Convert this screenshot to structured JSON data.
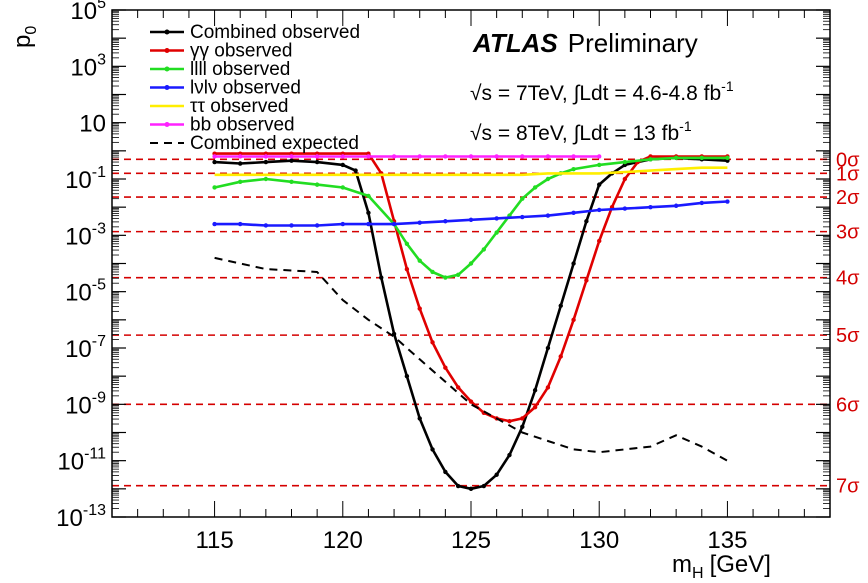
{
  "chart_data": {
    "type": "line",
    "xlabel": "m",
    "xlabel_sub": "H",
    "xlabel_unit": "[GeV]",
    "ylabel": "p",
    "ylabel_sub": "0",
    "xlim": [
      111,
      139
    ],
    "ylim_log10": [
      -13,
      5
    ],
    "yscale": "log",
    "x_ticks": [
      115,
      120,
      125,
      130,
      135
    ],
    "y_ticks": [
      {
        "exp": 5,
        "label": "10",
        "sup": "5"
      },
      {
        "exp": 3,
        "label": "10",
        "sup": "3"
      },
      {
        "exp": 1,
        "label": "10",
        "sup": ""
      },
      {
        "exp": -1,
        "label": "10",
        "sup": "-1"
      },
      {
        "exp": -3,
        "label": "10",
        "sup": "-3"
      },
      {
        "exp": -5,
        "label": "10",
        "sup": "-5"
      },
      {
        "exp": -7,
        "label": "10",
        "sup": "-7"
      },
      {
        "exp": -9,
        "label": "10",
        "sup": "-9"
      },
      {
        "exp": -11,
        "label": "10",
        "sup": "-11"
      },
      {
        "exp": -13,
        "label": "10",
        "sup": "-13"
      }
    ],
    "significance_lines": [
      {
        "label": "0σ",
        "log10p": -0.301
      },
      {
        "label": "1σ",
        "log10p": -0.799
      },
      {
        "label": "2σ",
        "log10p": -1.643
      },
      {
        "label": "3σ",
        "log10p": -2.868
      },
      {
        "label": "4σ",
        "log10p": -4.502
      },
      {
        "label": "5σ",
        "log10p": -6.543
      },
      {
        "label": "6σ",
        "log10p": -9.0
      },
      {
        "label": "7σ",
        "log10p": -11.89
      }
    ],
    "legend_position": "top-left",
    "annotation": {
      "experiment": "ATLAS",
      "status": "Preliminary",
      "line1": "√s = 7TeV, ∫Ldt = 4.6-4.8 fb",
      "line1_sup": "-1",
      "line2": "√s = 8TeV, ∫Ldt = 13 fb",
      "line2_sup": "-1"
    },
    "series": [
      {
        "name": "Combined observed",
        "color": "#000000",
        "style": "solid-markers",
        "x": [
          115,
          116,
          117,
          118,
          119,
          120,
          120.5,
          121,
          121.5,
          122,
          122.5,
          123,
          123.5,
          124,
          124.5,
          125,
          125.5,
          126,
          126.5,
          127,
          127.5,
          128,
          128.5,
          129,
          129.5,
          130,
          130.5,
          131,
          132,
          133,
          134,
          135
        ],
        "log10p": [
          -0.4,
          -0.45,
          -0.4,
          -0.35,
          -0.4,
          -0.5,
          -0.7,
          -2.2,
          -4.5,
          -6.5,
          -8.0,
          -9.5,
          -10.6,
          -11.4,
          -11.9,
          -12.0,
          -11.9,
          -11.5,
          -10.8,
          -9.8,
          -8.5,
          -7.0,
          -5.5,
          -4.0,
          -2.5,
          -1.2,
          -0.8,
          -0.5,
          -0.3,
          -0.25,
          -0.3,
          -0.35
        ]
      },
      {
        "name": "γγ observed",
        "color": "#e00000",
        "style": "solid-markers",
        "x": [
          115,
          116,
          117,
          118,
          119,
          120,
          121,
          121.5,
          122,
          122.5,
          123,
          123.5,
          124,
          124.5,
          125,
          125.5,
          126,
          126.5,
          127,
          127.5,
          128,
          128.5,
          129,
          129.5,
          130,
          130.5,
          131,
          131.5,
          132,
          133,
          134,
          135
        ],
        "log10p": [
          -0.1,
          -0.1,
          -0.1,
          -0.1,
          -0.1,
          -0.1,
          -0.1,
          -0.8,
          -2.5,
          -4.2,
          -5.6,
          -6.8,
          -7.7,
          -8.4,
          -8.9,
          -9.3,
          -9.5,
          -9.6,
          -9.5,
          -9.1,
          -8.4,
          -7.3,
          -6.0,
          -4.6,
          -3.2,
          -2.0,
          -1.0,
          -0.4,
          -0.2,
          -0.2,
          -0.2,
          -0.2
        ]
      },
      {
        "name": "llll observed",
        "color": "#22dd22",
        "style": "solid-markers",
        "x": [
          115,
          116,
          117,
          118,
          119,
          120,
          121,
          122,
          122.5,
          123,
          123.5,
          124,
          124.5,
          125,
          125.5,
          126,
          126.5,
          127,
          127.5,
          128,
          128.5,
          129,
          130,
          131,
          132,
          133,
          134,
          135
        ],
        "log10p": [
          -1.3,
          -1.1,
          -1.0,
          -1.1,
          -1.2,
          -1.3,
          -1.6,
          -2.6,
          -3.3,
          -3.9,
          -4.3,
          -4.5,
          -4.4,
          -4.0,
          -3.5,
          -2.9,
          -2.3,
          -1.7,
          -1.3,
          -1.0,
          -0.8,
          -0.65,
          -0.5,
          -0.4,
          -0.3,
          -0.25,
          -0.25,
          -0.25
        ]
      },
      {
        "name": "lνlν observed",
        "color": "#1a1aff",
        "style": "solid-markers",
        "x": [
          115,
          116,
          117,
          118,
          119,
          120,
          121,
          122,
          123,
          124,
          125,
          126,
          127,
          128,
          129,
          130,
          131,
          132,
          133,
          134,
          135
        ],
        "log10p": [
          -2.6,
          -2.6,
          -2.65,
          -2.65,
          -2.65,
          -2.6,
          -2.6,
          -2.6,
          -2.55,
          -2.5,
          -2.45,
          -2.4,
          -2.35,
          -2.3,
          -2.2,
          -2.1,
          -2.05,
          -2.0,
          -1.95,
          -1.85,
          -1.8
        ]
      },
      {
        "name": "ττ observed",
        "color": "#ffee00",
        "style": "solid",
        "x": [
          115,
          116,
          117,
          118,
          119,
          120,
          121,
          122,
          123,
          124,
          125,
          126,
          127,
          128,
          129,
          130,
          131,
          132,
          133,
          134,
          135
        ],
        "log10p": [
          -0.85,
          -0.85,
          -0.85,
          -0.85,
          -0.85,
          -0.85,
          -0.85,
          -0.85,
          -0.85,
          -0.85,
          -0.85,
          -0.85,
          -0.85,
          -0.8,
          -0.8,
          -0.8,
          -0.75,
          -0.7,
          -0.65,
          -0.6,
          -0.6
        ]
      },
      {
        "name": "bb observed",
        "color": "#ff22ff",
        "style": "solid-markers",
        "x": [
          115,
          116,
          117,
          118,
          119,
          120,
          121,
          122,
          123,
          124,
          125,
          126,
          127,
          128,
          129,
          130
        ],
        "log10p": [
          -0.2,
          -0.2,
          -0.2,
          -0.2,
          -0.2,
          -0.2,
          -0.2,
          -0.2,
          -0.2,
          -0.2,
          -0.2,
          -0.2,
          -0.2,
          -0.2,
          -0.2,
          -0.2
        ]
      },
      {
        "name": "Combined expected",
        "color": "#000000",
        "style": "dashed",
        "x": [
          115,
          116,
          117,
          118,
          119,
          120,
          121,
          122,
          123,
          124,
          125,
          126,
          127,
          128,
          129,
          130,
          131,
          132,
          133,
          134,
          135
        ],
        "log10p": [
          -3.8,
          -4.0,
          -4.2,
          -4.25,
          -4.3,
          -5.3,
          -6.0,
          -6.6,
          -7.4,
          -8.2,
          -9.0,
          -9.5,
          -10.0,
          -10.3,
          -10.6,
          -10.7,
          -10.6,
          -10.5,
          -10.1,
          -10.5,
          -11.0
        ]
      }
    ]
  }
}
